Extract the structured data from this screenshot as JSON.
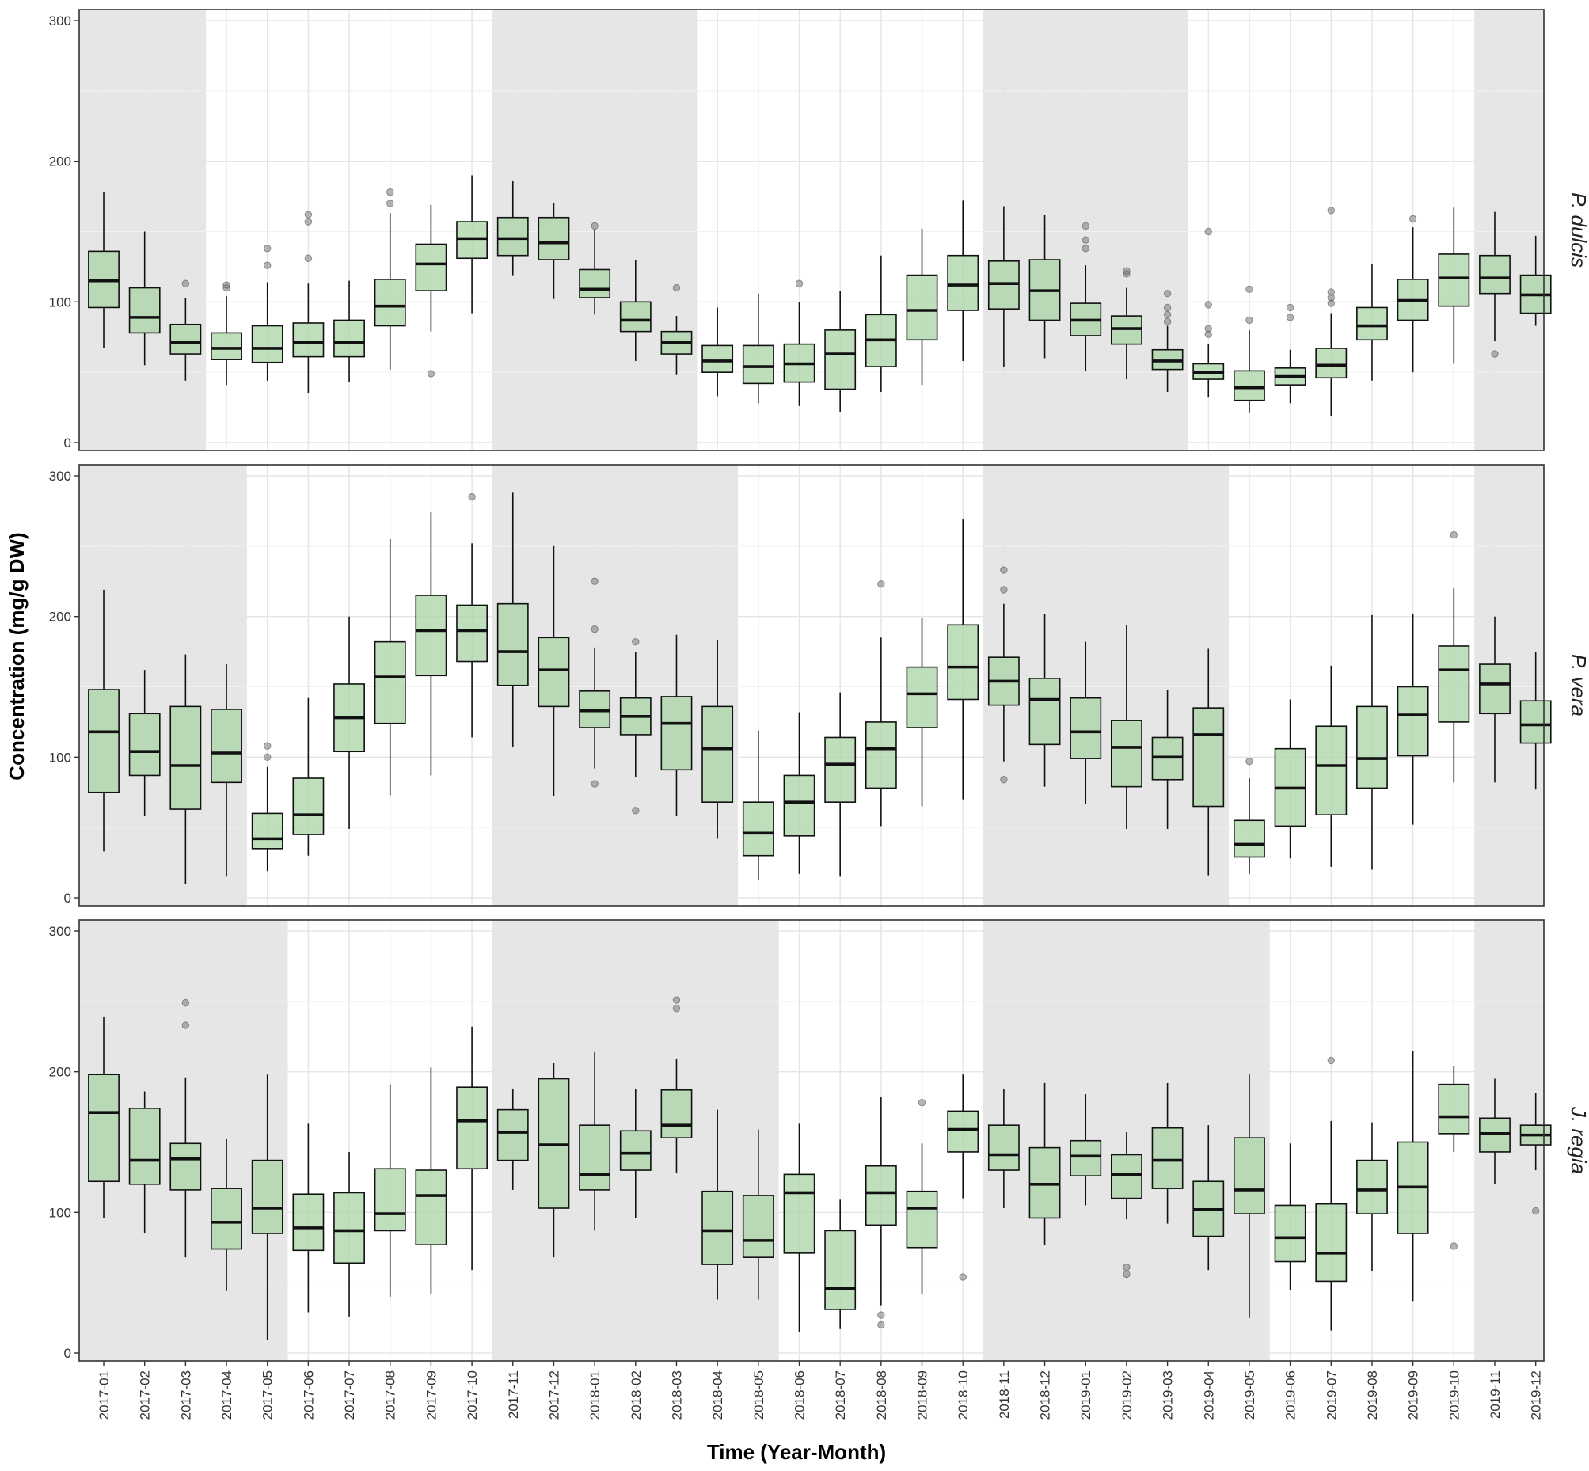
{
  "chart_data": {
    "type": "boxplot",
    "xlabel": "Time (Year-Month)",
    "ylabel": "Concentration (mg/g DW)",
    "ylim": [
      0,
      300
    ],
    "yticks": [
      0,
      100,
      200,
      300
    ],
    "grid": true,
    "categories": [
      "2017-01",
      "2017-02",
      "2017-03",
      "2017-04",
      "2017-05",
      "2017-06",
      "2017-07",
      "2017-08",
      "2017-09",
      "2017-10",
      "2017-11",
      "2017-12",
      "2018-01",
      "2018-02",
      "2018-03",
      "2018-04",
      "2018-05",
      "2018-06",
      "2018-07",
      "2018-08",
      "2018-09",
      "2018-10",
      "2018-11",
      "2018-12",
      "2019-01",
      "2019-02",
      "2019-03",
      "2019-04",
      "2019-05",
      "2019-06",
      "2019-07",
      "2019-08",
      "2019-09",
      "2019-10",
      "2019-11",
      "2019-12"
    ],
    "box_fill": "#a9d4a5",
    "shade_fill": "#e6e6e6",
    "panels": [
      {
        "label": "P. dulcis",
        "shaded_ranges": [
          [
            "2017-01",
            "2017-03"
          ],
          [
            "2017-11",
            "2018-03"
          ],
          [
            "2018-11",
            "2019-03"
          ],
          [
            "2019-11",
            "2019-12"
          ]
        ],
        "boxes": [
          [
            67,
            96,
            115,
            136,
            178,
            []
          ],
          [
            55,
            78,
            89,
            110,
            150,
            []
          ],
          [
            44,
            63,
            71,
            84,
            103,
            [
              113
            ]
          ],
          [
            41,
            59,
            67,
            78,
            104,
            [
              110,
              112
            ]
          ],
          [
            44,
            57,
            67,
            83,
            114,
            [
              126,
              138
            ]
          ],
          [
            35,
            61,
            71,
            85,
            113,
            [
              131,
              157,
              162
            ]
          ],
          [
            43,
            61,
            71,
            87,
            115,
            []
          ],
          [
            52,
            83,
            97,
            116,
            163,
            [
              170,
              178
            ]
          ],
          [
            79,
            108,
            127,
            141,
            169,
            [
              49
            ]
          ],
          [
            92,
            131,
            145,
            157,
            190,
            []
          ],
          [
            119,
            133,
            145,
            160,
            186,
            []
          ],
          [
            102,
            130,
            142,
            160,
            170,
            []
          ],
          [
            91,
            103,
            109,
            123,
            151,
            [
              154
            ]
          ],
          [
            58,
            79,
            87,
            100,
            130,
            []
          ],
          [
            48,
            63,
            71,
            79,
            90,
            [
              110
            ]
          ],
          [
            33,
            50,
            58,
            69,
            96,
            []
          ],
          [
            28,
            42,
            54,
            69,
            106,
            []
          ],
          [
            26,
            43,
            56,
            70,
            100,
            [
              113
            ]
          ],
          [
            22,
            38,
            63,
            80,
            108,
            []
          ],
          [
            36,
            54,
            73,
            91,
            133,
            []
          ],
          [
            41,
            73,
            94,
            119,
            152,
            []
          ],
          [
            58,
            94,
            112,
            133,
            172,
            []
          ],
          [
            54,
            95,
            113,
            129,
            168,
            []
          ],
          [
            60,
            87,
            108,
            130,
            162,
            []
          ],
          [
            51,
            76,
            87,
            99,
            126,
            [
              138,
              144,
              154
            ]
          ],
          [
            45,
            70,
            81,
            90,
            110,
            [
              120,
              122
            ]
          ],
          [
            36,
            52,
            58,
            66,
            83,
            [
              86,
              91,
              96,
              106
            ]
          ],
          [
            32,
            45,
            50,
            56,
            70,
            [
              77,
              81,
              98,
              150
            ]
          ],
          [
            21,
            30,
            39,
            51,
            80,
            [
              87,
              109
            ]
          ],
          [
            28,
            41,
            47,
            53,
            66,
            [
              89,
              96
            ]
          ],
          [
            19,
            46,
            55,
            67,
            92,
            [
              99,
              103,
              107,
              165
            ]
          ],
          [
            44,
            73,
            83,
            96,
            127,
            []
          ],
          [
            50,
            87,
            101,
            116,
            153,
            [
              159
            ]
          ],
          [
            56,
            97,
            117,
            134,
            167,
            []
          ],
          [
            72,
            106,
            117,
            133,
            164,
            [
              63
            ]
          ],
          [
            83,
            92,
            105,
            119,
            147,
            []
          ]
        ]
      },
      {
        "label": "P. vera",
        "shaded_ranges": [
          [
            "2017-01",
            "2017-04"
          ],
          [
            "2017-11",
            "2018-04"
          ],
          [
            "2018-11",
            "2019-04"
          ],
          [
            "2019-11",
            "2019-12"
          ]
        ],
        "boxes": [
          [
            33,
            75,
            118,
            148,
            219,
            []
          ],
          [
            58,
            87,
            104,
            131,
            162,
            []
          ],
          [
            10,
            63,
            94,
            136,
            173,
            []
          ],
          [
            15,
            82,
            103,
            134,
            166,
            []
          ],
          [
            19,
            35,
            42,
            60,
            93,
            [
              100,
              108
            ]
          ],
          [
            30,
            45,
            59,
            85,
            142,
            []
          ],
          [
            49,
            104,
            128,
            152,
            200,
            []
          ],
          [
            73,
            124,
            157,
            182,
            255,
            []
          ],
          [
            87,
            158,
            190,
            215,
            274,
            []
          ],
          [
            114,
            168,
            190,
            208,
            252,
            [
              285
            ]
          ],
          [
            107,
            151,
            175,
            209,
            288,
            []
          ],
          [
            72,
            136,
            162,
            185,
            250,
            []
          ],
          [
            92,
            121,
            133,
            147,
            178,
            [
              81,
              191,
              225
            ]
          ],
          [
            86,
            116,
            129,
            142,
            175,
            [
              62,
              182
            ]
          ],
          [
            58,
            91,
            124,
            143,
            187,
            []
          ],
          [
            42,
            68,
            106,
            136,
            183,
            []
          ],
          [
            13,
            30,
            46,
            68,
            119,
            []
          ],
          [
            17,
            44,
            68,
            87,
            132,
            []
          ],
          [
            15,
            68,
            95,
            114,
            146,
            []
          ],
          [
            51,
            78,
            106,
            125,
            185,
            [
              223
            ]
          ],
          [
            65,
            121,
            145,
            164,
            199,
            []
          ],
          [
            70,
            141,
            164,
            194,
            269,
            []
          ],
          [
            97,
            137,
            154,
            171,
            209,
            [
              84,
              219,
              233
            ]
          ],
          [
            79,
            109,
            141,
            156,
            202,
            []
          ],
          [
            67,
            99,
            118,
            142,
            182,
            []
          ],
          [
            49,
            79,
            107,
            126,
            194,
            []
          ],
          [
            49,
            84,
            100,
            114,
            148,
            []
          ],
          [
            16,
            65,
            116,
            135,
            177,
            []
          ],
          [
            17,
            29,
            38,
            55,
            85,
            [
              97
            ]
          ],
          [
            28,
            51,
            78,
            106,
            141,
            []
          ],
          [
            22,
            59,
            94,
            122,
            165,
            []
          ],
          [
            20,
            78,
            99,
            136,
            201,
            []
          ],
          [
            52,
            101,
            130,
            150,
            202,
            []
          ],
          [
            82,
            125,
            162,
            179,
            220,
            [
              258
            ]
          ],
          [
            82,
            131,
            152,
            166,
            200,
            []
          ],
          [
            77,
            110,
            123,
            140,
            175,
            []
          ]
        ]
      },
      {
        "label": "J. regia",
        "shaded_ranges": [
          [
            "2017-01",
            "2017-05"
          ],
          [
            "2017-11",
            "2018-05"
          ],
          [
            "2018-11",
            "2019-05"
          ],
          [
            "2019-11",
            "2019-12"
          ]
        ],
        "boxes": [
          [
            96,
            122,
            171,
            198,
            239,
            []
          ],
          [
            85,
            120,
            137,
            174,
            186,
            []
          ],
          [
            68,
            116,
            138,
            149,
            196,
            [
              233,
              249
            ]
          ],
          [
            44,
            74,
            93,
            117,
            152,
            []
          ],
          [
            9,
            85,
            103,
            137,
            198,
            []
          ],
          [
            29,
            73,
            89,
            113,
            163,
            []
          ],
          [
            26,
            64,
            87,
            114,
            143,
            []
          ],
          [
            40,
            87,
            99,
            131,
            191,
            []
          ],
          [
            42,
            77,
            112,
            130,
            203,
            []
          ],
          [
            59,
            131,
            165,
            189,
            232,
            []
          ],
          [
            116,
            137,
            157,
            173,
            188,
            []
          ],
          [
            68,
            103,
            148,
            195,
            206,
            []
          ],
          [
            87,
            116,
            127,
            162,
            214,
            []
          ],
          [
            96,
            130,
            142,
            158,
            188,
            []
          ],
          [
            128,
            153,
            162,
            187,
            209,
            [
              245,
              251
            ]
          ],
          [
            38,
            63,
            87,
            115,
            173,
            []
          ],
          [
            38,
            68,
            80,
            112,
            159,
            []
          ],
          [
            15,
            71,
            114,
            127,
            163,
            []
          ],
          [
            17,
            31,
            46,
            87,
            109,
            []
          ],
          [
            34,
            91,
            114,
            133,
            182,
            [
              20,
              27
            ]
          ],
          [
            42,
            75,
            103,
            115,
            149,
            [
              178
            ]
          ],
          [
            110,
            143,
            159,
            172,
            198,
            [
              54
            ]
          ],
          [
            103,
            130,
            141,
            162,
            188,
            []
          ],
          [
            77,
            96,
            120,
            146,
            192,
            []
          ],
          [
            105,
            126,
            140,
            151,
            184,
            []
          ],
          [
            95,
            110,
            127,
            141,
            157,
            [
              56,
              61
            ]
          ],
          [
            92,
            117,
            137,
            160,
            192,
            []
          ],
          [
            59,
            83,
            102,
            122,
            162,
            []
          ],
          [
            25,
            99,
            116,
            153,
            198,
            []
          ],
          [
            45,
            65,
            82,
            105,
            149,
            []
          ],
          [
            16,
            51,
            71,
            106,
            165,
            [
              208
            ]
          ],
          [
            58,
            99,
            116,
            137,
            164,
            []
          ],
          [
            37,
            85,
            118,
            150,
            215,
            []
          ],
          [
            143,
            156,
            168,
            191,
            204,
            [
              76
            ]
          ],
          [
            120,
            143,
            156,
            167,
            195,
            []
          ],
          [
            130,
            148,
            155,
            162,
            185,
            [
              101
            ]
          ]
        ]
      }
    ]
  }
}
